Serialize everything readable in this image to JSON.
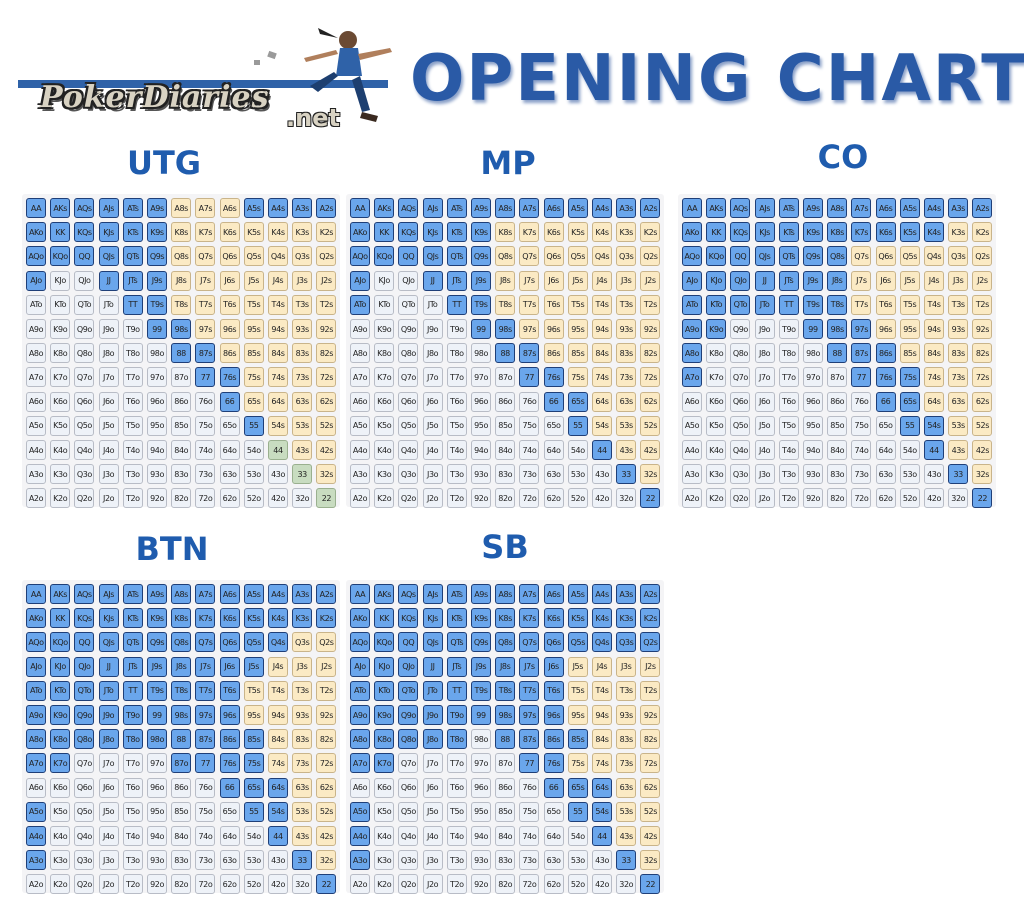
{
  "logo": {
    "text": "PokerDiaries",
    "net": ".net"
  },
  "title": "OPENING CHARTS",
  "chart_data": [
    {
      "type": "table",
      "position": "UTG",
      "raise": [
        "AA",
        "AKs",
        "AQs",
        "AJs",
        "ATs",
        "A9s",
        "A5s",
        "A4s",
        "A3s",
        "A2s",
        "AKo",
        "KK",
        "KQs",
        "KJs",
        "KTs",
        "K9s",
        "AQo",
        "KQo",
        "QQ",
        "QJs",
        "QTs",
        "Q9s",
        "AJo",
        "JJ",
        "JTs",
        "J9s",
        "TT",
        "T9s",
        "99",
        "98s",
        "88",
        "87s",
        "77",
        "76s",
        "66",
        "55"
      ],
      "alt": [
        "44",
        "33",
        "22"
      ]
    },
    {
      "type": "table",
      "position": "MP",
      "raise": [
        "AA",
        "AKs",
        "AQs",
        "AJs",
        "ATs",
        "A9s",
        "A8s",
        "A7s",
        "A6s",
        "A5s",
        "A4s",
        "A3s",
        "A2s",
        "AKo",
        "KK",
        "KQs",
        "KJs",
        "KTs",
        "K9s",
        "AQo",
        "KQo",
        "QQ",
        "QJs",
        "QTs",
        "Q9s",
        "AJo",
        "JJ",
        "JTs",
        "J9s",
        "ATo",
        "TT",
        "T9s",
        "99",
        "98s",
        "88",
        "87s",
        "77",
        "76s",
        "66",
        "65s",
        "55",
        "44",
        "33",
        "22"
      ],
      "alt": []
    },
    {
      "type": "table",
      "position": "CO",
      "raise": [
        "AA",
        "AKs",
        "AQs",
        "AJs",
        "ATs",
        "A9s",
        "A8s",
        "A7s",
        "A6s",
        "A5s",
        "A4s",
        "A3s",
        "A2s",
        "AKo",
        "KK",
        "KQs",
        "KJs",
        "KTs",
        "K9s",
        "K8s",
        "K7s",
        "K6s",
        "K5s",
        "K4s",
        "AQo",
        "KQo",
        "QQ",
        "QJs",
        "QTs",
        "Q9s",
        "Q8s",
        "AJo",
        "KJo",
        "QJo",
        "JJ",
        "JTs",
        "J9s",
        "J8s",
        "ATo",
        "KTo",
        "QTo",
        "JTo",
        "TT",
        "T9s",
        "T8s",
        "A9o",
        "K9o",
        "99",
        "98s",
        "97s",
        "A8o",
        "88",
        "87s",
        "86s",
        "A7o",
        "77",
        "76s",
        "75s",
        "66",
        "65s",
        "55",
        "54s",
        "44",
        "33",
        "22"
      ],
      "alt": []
    },
    {
      "type": "table",
      "position": "BTN",
      "raise": [
        "AA",
        "AKs",
        "AQs",
        "AJs",
        "ATs",
        "A9s",
        "A8s",
        "A7s",
        "A6s",
        "A5s",
        "A4s",
        "A3s",
        "A2s",
        "AKo",
        "KK",
        "KQs",
        "KJs",
        "KTs",
        "K9s",
        "K8s",
        "K7s",
        "K6s",
        "K5s",
        "K4s",
        "K3s",
        "K2s",
        "AQo",
        "KQo",
        "QQ",
        "QJs",
        "QTs",
        "Q9s",
        "Q8s",
        "Q7s",
        "Q6s",
        "Q5s",
        "Q4s",
        "AJo",
        "KJo",
        "QJo",
        "JJ",
        "JTs",
        "J9s",
        "J8s",
        "J7s",
        "J6s",
        "J5s",
        "ATo",
        "KTo",
        "QTo",
        "JTo",
        "TT",
        "T9s",
        "T8s",
        "T7s",
        "T6s",
        "A9o",
        "K9o",
        "Q9o",
        "J9o",
        "T9o",
        "99",
        "98s",
        "97s",
        "96s",
        "A8o",
        "K8o",
        "Q8o",
        "J8o",
        "T8o",
        "98o",
        "88",
        "87s",
        "86s",
        "85s",
        "A7o",
        "K7o",
        "87o",
        "77",
        "76s",
        "75s",
        "66",
        "65s",
        "64s",
        "A5o",
        "55",
        "54s",
        "A4o",
        "44",
        "A3o",
        "33",
        "22"
      ],
      "alt": []
    },
    {
      "type": "table",
      "position": "SB",
      "raise": [
        "AA",
        "AKs",
        "AQs",
        "AJs",
        "ATs",
        "A9s",
        "A8s",
        "A7s",
        "A6s",
        "A5s",
        "A4s",
        "A3s",
        "A2s",
        "AKo",
        "KK",
        "KQs",
        "KJs",
        "KTs",
        "K9s",
        "K8s",
        "K7s",
        "K6s",
        "K5s",
        "K4s",
        "K3s",
        "K2s",
        "AQo",
        "KQo",
        "QQ",
        "QJs",
        "QTs",
        "Q9s",
        "Q8s",
        "Q7s",
        "Q6s",
        "Q5s",
        "Q4s",
        "Q3s",
        "Q2s",
        "AJo",
        "KJo",
        "QJo",
        "JJ",
        "JTs",
        "J9s",
        "J8s",
        "J7s",
        "J6s",
        "ATo",
        "KTo",
        "QTo",
        "JTo",
        "TT",
        "T9s",
        "T8s",
        "T7s",
        "T6s",
        "A9o",
        "K9o",
        "Q9o",
        "J9o",
        "T9o",
        "99",
        "98s",
        "97s",
        "96s",
        "A8o",
        "K8o",
        "Q8o",
        "J8o",
        "T8o",
        "88",
        "87s",
        "86s",
        "85s",
        "A7o",
        "K7o",
        "77",
        "76s",
        "66",
        "65s",
        "64s",
        "A5o",
        "55",
        "54s",
        "A4o",
        "44",
        "A3o",
        "33",
        "22"
      ],
      "alt": []
    }
  ],
  "ranks": [
    "A",
    "K",
    "Q",
    "J",
    "T",
    "9",
    "8",
    "7",
    "6",
    "5",
    "4",
    "3",
    "2"
  ],
  "colors": {
    "raise": "#6aa6ec",
    "suited": "#fbeac4",
    "offsuit": "#eef2f8",
    "alt": "#c8dcc0",
    "title": "#2a5aa6"
  }
}
